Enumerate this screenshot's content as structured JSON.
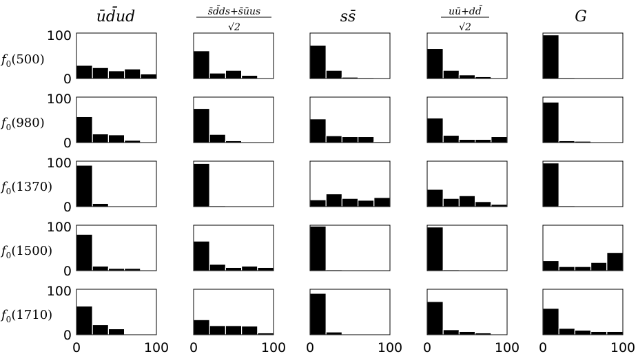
{
  "figure": {
    "columns": [
      {
        "title": "ūd̄ud"
      },
      {
        "numerator": "s̄d̄ds+s̄ūus",
        "denominator": "√2"
      },
      {
        "title": "ss̄"
      },
      {
        "numerator": "uū+dd̄",
        "denominator": "√2"
      },
      {
        "title": "G"
      }
    ],
    "rows": [
      {
        "fn": "f",
        "sub": "0",
        "arg": "(500)"
      },
      {
        "fn": "f",
        "sub": "0",
        "arg": "(980)"
      },
      {
        "fn": "f",
        "sub": "0",
        "arg": "(1370)"
      },
      {
        "fn": "f",
        "sub": "0",
        "arg": "(1500)"
      },
      {
        "fn": "f",
        "sub": "0",
        "arg": "(1710)"
      }
    ],
    "y_ticks": [
      "0",
      "100"
    ],
    "x_ticks": [
      "0",
      "100"
    ]
  },
  "chart_data": {
    "type": "bar",
    "layout": "grid 5 rows × 5 columns of histograms",
    "bins": [
      10,
      30,
      50,
      70,
      90
    ],
    "xlim": [
      0,
      100
    ],
    "ylim": [
      0,
      100
    ],
    "bar_color": "#000000",
    "panels": [
      [
        [
          29,
          24,
          17,
          21,
          10
        ],
        [
          61,
          12,
          18,
          7,
          0
        ],
        [
          73,
          18,
          3,
          2,
          0
        ],
        [
          66,
          18,
          8,
          4,
          1
        ],
        [
          96,
          2,
          0,
          0,
          0
        ]
      ],
      [
        [
          57,
          19,
          17,
          5,
          0
        ],
        [
          75,
          18,
          4,
          0,
          0
        ],
        [
          52,
          15,
          13,
          13,
          2
        ],
        [
          54,
          16,
          7,
          7,
          13
        ],
        [
          89,
          4,
          3,
          0,
          0
        ]
      ],
      [
        [
          91,
          7,
          0,
          0,
          0
        ],
        [
          95,
          2,
          0,
          0,
          0
        ],
        [
          15,
          28,
          18,
          14,
          20
        ],
        [
          38,
          18,
          24,
          11,
          5
        ],
        [
          96,
          2,
          0,
          0,
          0
        ]
      ],
      [
        [
          80,
          10,
          5,
          5,
          0
        ],
        [
          65,
          14,
          7,
          10,
          7
        ],
        [
          98,
          2,
          0,
          0,
          0
        ],
        [
          96,
          2,
          0,
          0,
          0
        ],
        [
          22,
          9,
          9,
          18,
          40
        ]
      ],
      [
        [
          63,
          22,
          13,
          0,
          0
        ],
        [
          33,
          20,
          20,
          19,
          4
        ],
        [
          91,
          6,
          0,
          0,
          0
        ],
        [
          73,
          11,
          7,
          4,
          0
        ],
        [
          58,
          14,
          10,
          7,
          7
        ]
      ]
    ]
  }
}
